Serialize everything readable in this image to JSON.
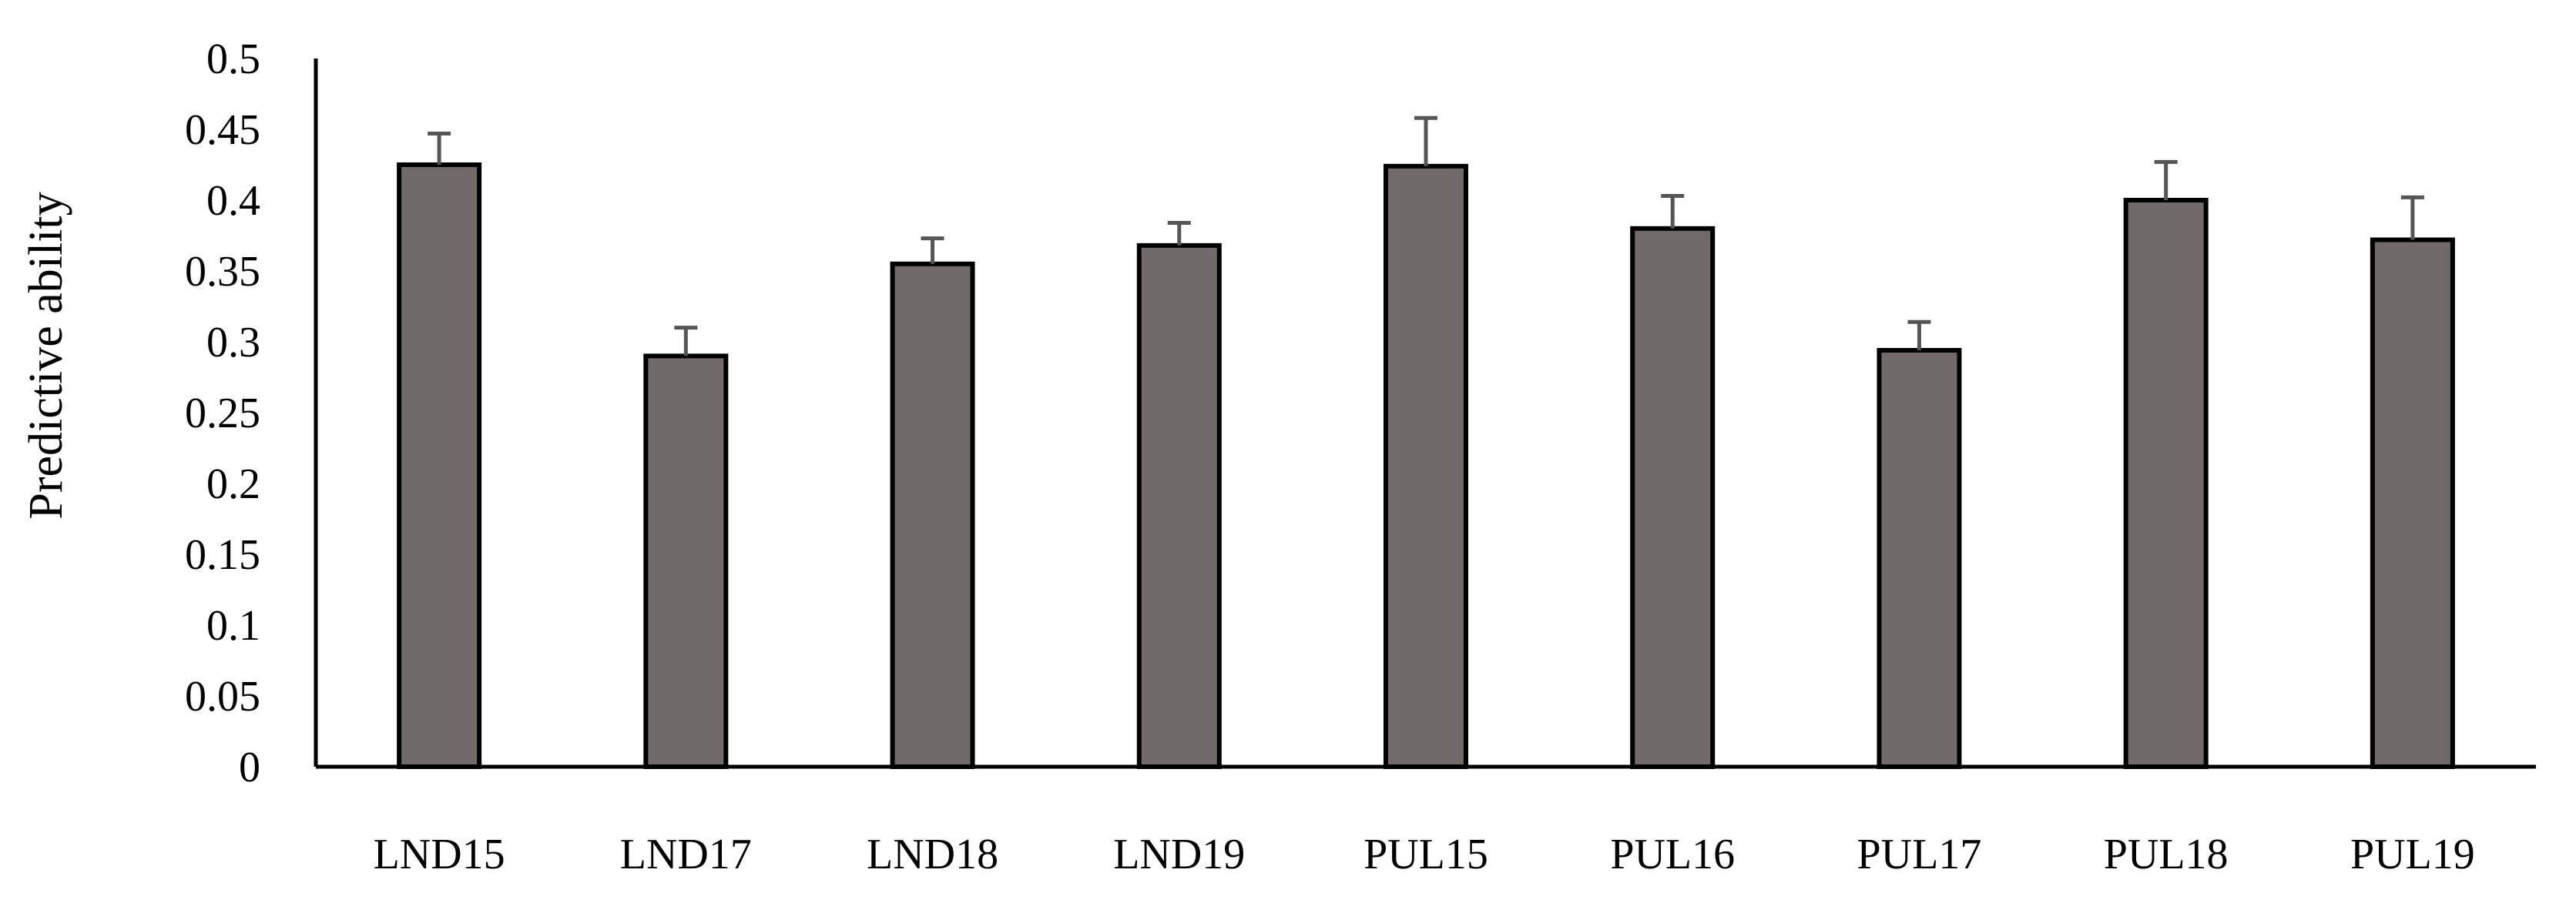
{
  "chart_data": {
    "type": "bar",
    "title": "",
    "xlabel": "",
    "ylabel": "Predictive ability",
    "categories": [
      "LND15",
      "LND17",
      "LND18",
      "LND19",
      "PUL15",
      "PUL16",
      "PUL17",
      "PUL18",
      "PUL19"
    ],
    "values": [
      0.425,
      0.29,
      0.355,
      0.368,
      0.424,
      0.38,
      0.294,
      0.4,
      0.372
    ],
    "error": [
      0.022,
      0.02,
      0.018,
      0.016,
      0.034,
      0.023,
      0.02,
      0.027,
      0.03
    ],
    "ylim": [
      0,
      0.5
    ],
    "yticks": [
      "0",
      "0.05",
      "0.1",
      "0.15",
      "0.2",
      "0.25",
      "0.3",
      "0.35",
      "0.4",
      "0.45",
      "0.5"
    ],
    "grid": false,
    "legend": "none",
    "colors": {
      "bar_fill": "#706b69",
      "bar_stroke": "#000000",
      "error_bar": "#555555",
      "axis": "#000000"
    }
  }
}
